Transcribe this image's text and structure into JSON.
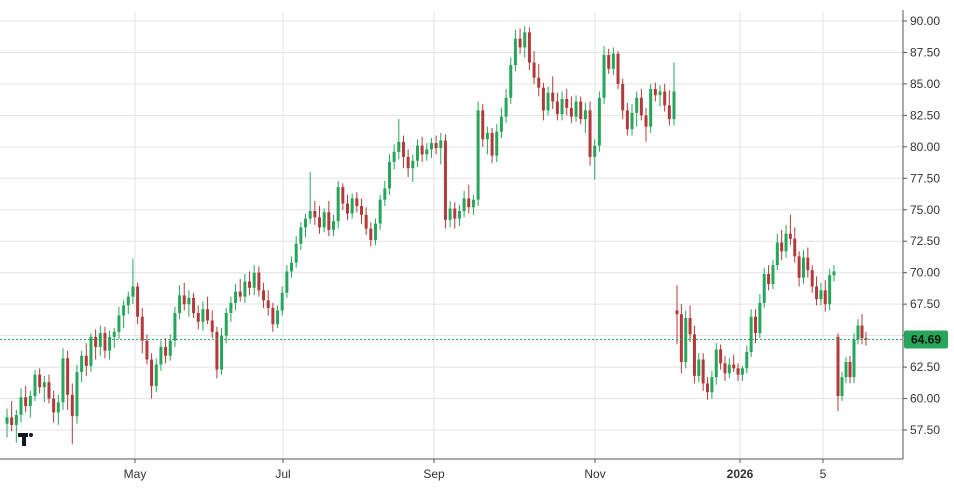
{
  "chart_data": {
    "type": "candlestick",
    "y_axis": {
      "position": "right",
      "range": [
        56.0,
        91.0
      ],
      "ticks": [
        "90.00",
        "87.50",
        "85.00",
        "82.50",
        "80.00",
        "77.50",
        "75.00",
        "72.50",
        "70.00",
        "67.50",
        "65.00",
        "62.50",
        "60.00",
        "57.50"
      ]
    },
    "x_axis": {
      "ticks": [
        {
          "label": "May",
          "bold": false
        },
        {
          "label": "Jul",
          "bold": false
        },
        {
          "label": "Sep",
          "bold": false
        },
        {
          "label": "Nov",
          "bold": false
        },
        {
          "label": "2026",
          "bold": true
        },
        {
          "label": "5",
          "bold": false
        }
      ]
    },
    "grid": true,
    "last_price": {
      "value": 64.69,
      "label": "64.69",
      "color": "#26a65b"
    },
    "colors": {
      "up": "#26a65b",
      "down": "#b33a3a",
      "grid": "#e3e3e3",
      "axis": "#555555"
    },
    "logo": "tradingview-logo",
    "segments": [
      {
        "ohlc": [
          [
            58.0,
            59.2,
            56.9,
            58.5
          ],
          [
            58.5,
            59.8,
            57.4,
            57.9
          ],
          [
            57.9,
            59.1,
            56.5,
            58.7
          ],
          [
            58.7,
            60.8,
            58.1,
            60.1
          ],
          [
            60.1,
            61.0,
            58.9,
            59.4
          ],
          [
            59.4,
            60.6,
            58.5,
            60.2
          ],
          [
            60.2,
            62.3,
            59.8,
            61.9
          ],
          [
            61.9,
            62.4,
            60.4,
            60.9
          ],
          [
            60.9,
            61.8,
            59.7,
            61.3
          ],
          [
            61.3,
            61.9,
            59.6,
            60.0
          ],
          [
            60.0,
            60.6,
            58.1,
            58.9
          ],
          [
            58.9,
            60.3,
            57.9,
            59.7
          ],
          [
            59.7,
            64.0,
            59.1,
            63.2
          ],
          [
            63.2,
            63.8,
            59.1,
            60.3
          ],
          [
            60.3,
            61.2,
            56.4,
            58.6
          ],
          [
            58.6,
            62.7,
            58.0,
            62.1
          ],
          [
            62.1,
            63.8,
            61.3,
            63.4
          ],
          [
            63.4,
            64.4,
            61.8,
            62.6
          ],
          [
            62.6,
            65.2,
            62.1,
            64.9
          ],
          [
            64.9,
            65.5,
            63.1,
            64.1
          ],
          [
            64.1,
            65.8,
            63.4,
            65.2
          ],
          [
            65.2,
            65.7,
            63.2,
            63.8
          ],
          [
            63.8,
            65.4,
            63.1,
            64.9
          ],
          [
            64.9,
            65.6,
            64.0,
            65.3
          ],
          [
            65.3,
            67.3,
            64.7,
            66.6
          ],
          [
            66.6,
            67.8,
            65.6,
            67.4
          ],
          [
            67.4,
            68.5,
            66.7,
            68.1
          ],
          [
            68.1,
            71.1,
            67.5,
            68.9
          ],
          [
            68.9,
            69.2,
            65.9,
            66.5
          ],
          [
            66.5,
            67.2,
            63.6,
            64.6
          ],
          [
            64.6,
            65.1,
            62.7,
            63.1
          ],
          [
            63.1,
            63.6,
            60.0,
            61.0
          ],
          [
            61.0,
            63.2,
            60.5,
            62.7
          ],
          [
            62.7,
            64.6,
            62.2,
            64.1
          ],
          [
            64.1,
            64.8,
            62.8,
            63.4
          ],
          [
            63.4,
            65.1,
            63.0,
            64.6
          ],
          [
            64.6,
            67.3,
            64.1,
            66.8
          ],
          [
            66.8,
            69.0,
            66.3,
            68.2
          ],
          [
            68.2,
            69.2,
            67.0,
            67.5
          ],
          [
            67.5,
            68.6,
            66.5,
            68.0
          ],
          [
            68.0,
            68.4,
            66.4,
            66.8
          ],
          [
            66.8,
            67.4,
            65.5,
            66.1
          ],
          [
            66.1,
            67.7,
            65.4,
            67.1
          ],
          [
            67.1,
            68.1,
            65.9,
            66.2
          ],
          [
            66.2,
            67.0,
            64.8,
            65.3
          ],
          [
            65.3,
            65.7,
            61.6,
            62.3
          ],
          [
            62.3,
            65.6,
            61.9,
            65.0
          ],
          [
            65.0,
            67.2,
            64.4,
            66.8
          ],
          [
            66.8,
            68.1,
            66.1,
            67.6
          ],
          [
            67.6,
            69.1,
            67.0,
            68.5
          ],
          [
            68.5,
            69.5,
            67.7,
            68.1
          ],
          [
            68.1,
            69.9,
            67.6,
            69.3
          ],
          [
            69.3,
            70.1,
            68.2,
            68.8
          ],
          [
            68.8,
            70.6,
            68.2,
            70.0
          ],
          [
            70.0,
            70.5,
            68.1,
            68.6
          ],
          [
            68.6,
            69.2,
            67.2,
            67.8
          ],
          [
            67.8,
            68.6,
            66.6,
            67.2
          ],
          [
            67.2,
            67.6,
            65.3,
            65.9
          ],
          [
            65.9,
            67.4,
            65.6,
            67.0
          ],
          [
            67.0,
            68.9,
            66.6,
            68.4
          ],
          [
            68.4,
            70.6,
            68.0,
            70.1
          ],
          [
            70.1,
            71.3,
            69.6,
            70.8
          ],
          [
            70.8,
            72.9,
            70.4,
            72.3
          ],
          [
            72.3,
            74.0,
            71.8,
            73.6
          ],
          [
            73.6,
            74.7,
            72.8,
            74.3
          ],
          [
            74.3,
            78.0,
            73.9,
            74.9
          ],
          [
            74.9,
            75.7,
            73.8,
            74.4
          ],
          [
            74.4,
            75.3,
            73.1,
            73.6
          ],
          [
            73.6,
            75.1,
            73.2,
            74.8
          ],
          [
            74.8,
            75.7,
            72.9,
            73.4
          ],
          [
            73.4,
            74.6,
            72.9,
            74.1
          ],
          [
            74.1,
            77.3,
            73.5,
            76.8
          ],
          [
            76.8,
            77.1,
            75.0,
            75.5
          ],
          [
            75.5,
            76.2,
            74.2,
            74.7
          ],
          [
            74.7,
            76.3,
            74.3,
            75.9
          ],
          [
            75.9,
            76.4,
            74.8,
            75.3
          ],
          [
            75.3,
            75.9,
            73.9,
            74.6
          ],
          [
            74.6,
            75.2,
            73.0,
            73.5
          ],
          [
            73.5,
            74.0,
            72.1,
            72.6
          ],
          [
            72.6,
            74.3,
            72.2,
            73.9
          ],
          [
            73.9,
            76.2,
            73.4,
            75.8
          ],
          [
            75.8,
            77.3,
            75.3,
            76.7
          ],
          [
            76.7,
            79.4,
            76.2,
            78.8
          ],
          [
            78.8,
            80.2,
            78.2,
            79.6
          ],
          [
            79.6,
            82.2,
            79.0,
            80.4
          ],
          [
            80.4,
            80.9,
            78.3,
            79.2
          ],
          [
            79.2,
            79.8,
            77.6,
            78.3
          ],
          [
            78.3,
            79.4,
            77.2,
            78.9
          ],
          [
            78.9,
            80.6,
            78.4,
            80.1
          ],
          [
            80.1,
            80.8,
            78.8,
            79.4
          ],
          [
            79.4,
            80.3,
            78.9,
            79.8
          ],
          [
            79.8,
            80.7,
            79.1,
            80.3
          ],
          [
            80.3,
            80.9,
            79.4,
            79.9
          ],
          [
            79.9,
            81.1,
            78.6,
            80.5
          ],
          [
            80.5,
            81.0,
            73.5,
            74.2
          ],
          [
            74.2,
            75.7,
            73.6,
            75.1
          ],
          [
            75.1,
            75.6,
            73.5,
            74.3
          ],
          [
            74.3,
            75.4,
            73.7,
            74.9
          ],
          [
            74.9,
            76.5,
            74.4,
            75.9
          ],
          [
            75.9,
            77.0,
            74.7,
            75.2
          ],
          [
            75.2,
            76.2,
            74.6,
            75.8
          ],
          [
            75.8,
            83.6,
            75.3,
            82.9
          ],
          [
            82.9,
            83.4,
            80.0,
            80.6
          ],
          [
            80.6,
            81.6,
            79.4,
            81.1
          ],
          [
            81.1,
            81.5,
            78.7,
            79.3
          ],
          [
            79.3,
            81.8,
            78.8,
            81.2
          ],
          [
            81.2,
            83.1,
            80.7,
            82.4
          ],
          [
            82.4,
            84.6,
            81.9,
            83.9
          ],
          [
            83.9,
            87.1,
            83.4,
            86.5
          ],
          [
            86.5,
            89.3,
            86.0,
            88.6
          ],
          [
            88.6,
            89.4,
            87.4,
            87.9
          ],
          [
            87.9,
            89.6,
            87.1,
            89.1
          ],
          [
            89.1,
            89.5,
            86.1,
            86.7
          ],
          [
            86.7,
            87.6,
            85.0,
            85.5
          ],
          [
            85.5,
            86.6,
            84.0,
            84.7
          ],
          [
            84.7,
            85.1,
            82.1,
            82.9
          ],
          [
            82.9,
            84.8,
            82.5,
            84.3
          ],
          [
            84.3,
            85.6,
            83.0,
            83.6
          ],
          [
            83.6,
            84.3,
            82.1,
            82.6
          ],
          [
            82.6,
            84.4,
            82.1,
            83.8
          ],
          [
            83.8,
            84.6,
            82.5,
            83.1
          ],
          [
            83.1,
            84.0,
            81.9,
            82.4
          ],
          [
            82.4,
            84.1,
            82.0,
            83.6
          ],
          [
            83.6,
            84.0,
            81.8,
            82.2
          ],
          [
            82.2,
            83.5,
            81.1,
            82.9
          ],
          [
            82.9,
            83.6,
            78.5,
            79.2
          ],
          [
            79.2,
            80.6,
            77.4,
            80.1
          ],
          [
            80.1,
            84.4,
            79.6,
            83.9
          ],
          [
            83.9,
            88.0,
            83.4,
            87.3
          ],
          [
            87.3,
            87.8,
            85.8,
            86.2
          ],
          [
            86.2,
            87.9,
            85.7,
            87.4
          ],
          [
            87.4,
            87.6,
            84.6,
            85.0
          ],
          [
            85.0,
            85.4,
            82.2,
            82.9
          ],
          [
            82.9,
            83.5,
            80.9,
            81.4
          ],
          [
            81.4,
            83.4,
            80.9,
            82.7
          ],
          [
            82.7,
            84.4,
            81.6,
            83.9
          ],
          [
            83.9,
            84.6,
            82.1,
            82.5
          ],
          [
            82.5,
            83.1,
            80.4,
            81.6
          ],
          [
            81.6,
            85.0,
            81.1,
            84.6
          ],
          [
            84.6,
            85.1,
            83.6,
            84.1
          ],
          [
            84.1,
            84.9,
            83.2,
            84.4
          ],
          [
            84.4,
            85.0,
            82.8,
            83.3
          ],
          [
            83.3,
            84.5,
            81.7,
            82.2
          ],
          [
            82.2,
            86.7,
            81.7,
            84.4
          ]
        ]
      },
      {
        "ohlc": [
          [
            67.0,
            69.0,
            64.3,
            66.7
          ],
          [
            66.7,
            67.5,
            62.0,
            62.9
          ],
          [
            62.9,
            67.0,
            62.4,
            66.4
          ],
          [
            66.4,
            67.4,
            64.5,
            65.1
          ],
          [
            65.1,
            65.8,
            61.2,
            61.8
          ],
          [
            61.8,
            63.6,
            61.3,
            63.1
          ],
          [
            63.1,
            63.6,
            60.6,
            61.2
          ],
          [
            61.2,
            61.7,
            59.9,
            60.5
          ],
          [
            60.5,
            62.2,
            60.0,
            61.7
          ],
          [
            61.7,
            64.4,
            61.1,
            63.9
          ],
          [
            63.9,
            64.3,
            62.3,
            62.8
          ],
          [
            62.8,
            63.4,
            61.4,
            62.0
          ],
          [
            62.0,
            63.2,
            61.6,
            62.7
          ],
          [
            62.7,
            63.5,
            62.1,
            62.4
          ],
          [
            62.4,
            62.8,
            61.4,
            61.9
          ],
          [
            61.9,
            62.6,
            61.4,
            62.4
          ],
          [
            62.4,
            64.2,
            62.0,
            63.7
          ],
          [
            63.7,
            67.1,
            63.3,
            66.5
          ],
          [
            66.5,
            67.1,
            64.4,
            65.2
          ],
          [
            65.2,
            68.3,
            64.8,
            67.6
          ],
          [
            67.6,
            70.4,
            67.2,
            69.9
          ],
          [
            69.9,
            70.6,
            68.6,
            69.1
          ],
          [
            69.1,
            71.0,
            68.7,
            70.6
          ],
          [
            70.6,
            73.1,
            70.2,
            72.4
          ],
          [
            72.4,
            73.4,
            71.0,
            71.7
          ],
          [
            71.7,
            73.8,
            71.2,
            73.1
          ],
          [
            73.1,
            74.6,
            72.2,
            72.7
          ],
          [
            72.7,
            73.6,
            70.8,
            71.3
          ],
          [
            71.3,
            71.7,
            68.9,
            69.6
          ],
          [
            69.6,
            71.8,
            69.1,
            71.2
          ],
          [
            71.2,
            72.0,
            69.6,
            70.2
          ],
          [
            70.2,
            70.6,
            68.4,
            68.9
          ],
          [
            68.9,
            69.7,
            67.4,
            67.9
          ],
          [
            67.9,
            69.2,
            67.4,
            68.6
          ],
          [
            68.6,
            69.4,
            66.9,
            67.5
          ],
          [
            67.5,
            70.3,
            67.0,
            69.8
          ],
          [
            69.8,
            70.6,
            69.3,
            70.1
          ]
        ]
      },
      {
        "ohlc": [
          [
            64.9,
            65.2,
            59.0,
            60.2
          ],
          [
            60.2,
            62.1,
            59.8,
            61.7
          ],
          [
            61.7,
            63.3,
            61.2,
            62.9
          ],
          [
            62.9,
            63.4,
            61.2,
            61.7
          ],
          [
            61.7,
            65.2,
            61.2,
            64.7
          ],
          [
            64.7,
            66.3,
            64.3,
            65.8
          ],
          [
            65.8,
            66.7,
            64.3,
            64.8
          ],
          [
            64.8,
            65.3,
            64.2,
            64.69
          ]
        ]
      }
    ]
  }
}
